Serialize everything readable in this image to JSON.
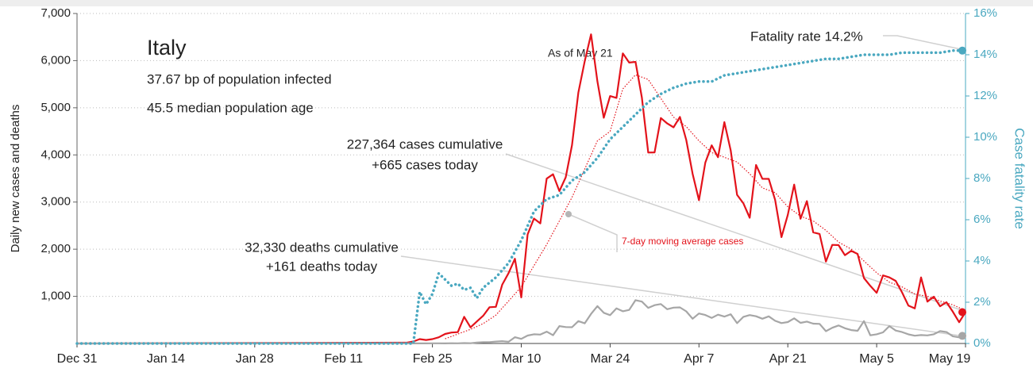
{
  "chart_data": {
    "type": "line",
    "ylabel": "Daily new cases and deaths",
    "y2label": "Case fatality rate",
    "xlim": [
      0,
      140
    ],
    "xticks": [
      {
        "value": 0,
        "label": "Dec 31"
      },
      {
        "value": 14,
        "label": "Jan 14"
      },
      {
        "value": 28,
        "label": "Jan 28"
      },
      {
        "value": 42,
        "label": "Feb 11"
      },
      {
        "value": 56,
        "label": "Feb 25"
      },
      {
        "value": 70,
        "label": "Mar 10"
      },
      {
        "value": 84,
        "label": "Mar 24"
      },
      {
        "value": 98,
        "label": "Apr 7"
      },
      {
        "value": 112,
        "label": "Apr 21"
      },
      {
        "value": 126,
        "label": "May 5"
      },
      {
        "value": 140,
        "label": "May 19"
      }
    ],
    "ylim": [
      0,
      7000
    ],
    "yticks": [
      {
        "value": 1000,
        "label": "1,000"
      },
      {
        "value": 2000,
        "label": "2,000"
      },
      {
        "value": 3000,
        "label": "3,000"
      },
      {
        "value": 4000,
        "label": "4,000"
      },
      {
        "value": 5000,
        "label": "5,000"
      },
      {
        "value": 6000,
        "label": "6,000"
      },
      {
        "value": 7000,
        "label": "7,000"
      }
    ],
    "y2lim": [
      0,
      16
    ],
    "y2ticks": [
      {
        "value": 0,
        "label": "0%"
      },
      {
        "value": 2,
        "label": "2%"
      },
      {
        "value": 4,
        "label": "4%"
      },
      {
        "value": 6,
        "label": "6%"
      },
      {
        "value": 8,
        "label": "8%"
      },
      {
        "value": 10,
        "label": "10%"
      },
      {
        "value": 12,
        "label": "12%"
      },
      {
        "value": 14,
        "label": "14%"
      },
      {
        "value": 16,
        "label": "16%"
      }
    ],
    "grid": true,
    "annotations": [
      "Italy",
      "37.67 bp of population infected",
      "45.5 median population age",
      "As of May 21",
      "227,364 cases cumulative",
      "+665 cases today",
      "32,330 deaths cumulative",
      "+161 deaths today",
      "Fatality rate 14.2%"
    ],
    "series": [
      {
        "color": "#e3131b",
        "linestyle": "solid",
        "end_marker": true,
        "x": [
          0,
          52,
          53,
          54,
          55,
          56,
          57,
          58,
          59,
          60,
          61,
          62,
          63,
          64,
          65,
          66,
          67,
          68,
          69,
          70,
          71,
          72,
          73,
          74,
          75,
          76,
          77,
          78,
          79,
          80,
          81,
          82,
          83,
          84,
          85,
          86,
          87,
          88,
          89,
          90,
          91,
          92,
          93,
          94,
          95,
          96,
          97,
          98,
          99,
          100,
          101,
          102,
          103,
          104,
          105,
          106,
          107,
          108,
          109,
          110,
          111,
          112,
          113,
          114,
          115,
          116,
          117,
          118,
          119,
          120,
          121,
          122,
          123,
          124,
          125,
          126,
          127,
          128,
          129,
          130,
          131,
          132,
          133,
          134,
          135,
          136,
          137,
          138,
          139,
          140
        ],
        "values": [
          0,
          17,
          42,
          93,
          74,
          93,
          131,
          202,
          233,
          240,
          566,
          342,
          466,
          587,
          769,
          778,
          1247,
          1492,
          1797,
          977,
          2313,
          2651,
          2547,
          3497,
          3590,
          3233,
          3526,
          4207,
          5322,
          5986,
          6557,
          5560,
          4789,
          5249,
          5210,
          6153,
          5959,
          5974,
          5217,
          4050,
          4053,
          4782,
          4668,
          4585,
          4805,
          4316,
          3599,
          3039,
          3836,
          4204,
          3951,
          4694,
          4092,
          3153,
          2972,
          2667,
          3786,
          3493,
          3491,
          3047,
          2256,
          2729,
          3370,
          2646,
          3021,
          2357,
          2324,
          1739,
          2091,
          2086,
          1872,
          1965,
          1900,
          1389,
          1221,
          1075,
          1444,
          1402,
          1327,
          1083,
          802,
          744,
          1402,
          888,
          992,
          789,
          875,
          675,
          451,
          665
        ]
      },
      {
        "color": "#a6a6a6",
        "linestyle": "solid",
        "end_marker": true,
        "x": [
          0,
          52,
          53,
          54,
          55,
          56,
          57,
          58,
          59,
          60,
          61,
          62,
          63,
          64,
          65,
          66,
          67,
          68,
          69,
          70,
          71,
          72,
          73,
          74,
          75,
          76,
          77,
          78,
          79,
          80,
          81,
          82,
          83,
          84,
          85,
          86,
          87,
          88,
          89,
          90,
          91,
          92,
          93,
          94,
          95,
          96,
          97,
          98,
          99,
          100,
          101,
          102,
          103,
          104,
          105,
          106,
          107,
          108,
          109,
          110,
          111,
          112,
          113,
          114,
          115,
          116,
          117,
          118,
          119,
          120,
          121,
          122,
          123,
          124,
          125,
          126,
          127,
          128,
          129,
          130,
          131,
          132,
          133,
          134,
          135,
          136,
          137,
          138,
          139,
          140
        ],
        "values": [
          0,
          1,
          2,
          3,
          2,
          4,
          3,
          2,
          5,
          4,
          8,
          5,
          18,
          27,
          28,
          41,
          49,
          36,
          133,
          97,
          168,
          196,
          189,
          250,
          175,
          368,
          349,
          345,
          475,
          427,
          627,
          793,
          651,
          601,
          743,
          683,
          712,
          919,
          889,
          756,
          812,
          837,
          727,
          760,
          766,
          681,
          525,
          636,
          604,
          542,
          610,
          570,
          619,
          431,
          566,
          602,
          578,
          525,
          575,
          482,
          433,
          454,
          534,
          437,
          464,
          420,
          415,
          260,
          333,
          382,
          323,
          285,
          269,
          474,
          174,
          195,
          236,
          369,
          274,
          243,
          194,
          165,
          179,
          172,
          195,
          262,
          242,
          153,
          130,
          161
        ]
      },
      {
        "name": "7-day moving average cases",
        "color": "#e3131b",
        "linestyle": "fine-dotted",
        "end_marker": false,
        "x": [
          58,
          60,
          62,
          64,
          66,
          68,
          70,
          72,
          74,
          76,
          78,
          80,
          82,
          84,
          86,
          88,
          90,
          92,
          94,
          96,
          98,
          100,
          102,
          104,
          106,
          108,
          110,
          112,
          114,
          116,
          118,
          120,
          122,
          124,
          126,
          128,
          130,
          132,
          134,
          136,
          138,
          140
        ],
        "values": [
          100,
          200,
          300,
          420,
          600,
          900,
          1200,
          1650,
          2100,
          2600,
          3100,
          3700,
          4300,
          4500,
          5400,
          5700,
          5600,
          5200,
          4800,
          4600,
          4300,
          4050,
          3950,
          3850,
          3600,
          3300,
          3200,
          2900,
          2700,
          2600,
          2400,
          2150,
          2000,
          1750,
          1500,
          1300,
          1200,
          1050,
          1000,
          900,
          820,
          700
        ]
      },
      {
        "color": "#4aa8c0",
        "linestyle": "dotted",
        "axis": "y2",
        "end_marker": true,
        "x": [
          0,
          52,
          53,
          54,
          55,
          56,
          57,
          58,
          59,
          60,
          61,
          62,
          63,
          64,
          66,
          68,
          70,
          72,
          74,
          76,
          78,
          80,
          82,
          84,
          86,
          88,
          90,
          92,
          94,
          96,
          98,
          100,
          102,
          104,
          106,
          108,
          110,
          112,
          114,
          116,
          118,
          120,
          122,
          124,
          126,
          128,
          130,
          132,
          134,
          136,
          138,
          140
        ],
        "values": [
          0,
          0,
          0,
          2.5,
          1.9,
          2.4,
          3.4,
          3.1,
          2.8,
          2.9,
          2.6,
          2.7,
          2.2,
          2.7,
          3.2,
          3.9,
          5.0,
          6.4,
          7.0,
          7.2,
          7.9,
          8.3,
          9.0,
          9.9,
          10.5,
          11.1,
          11.7,
          12.1,
          12.4,
          12.6,
          12.7,
          12.7,
          13.0,
          13.1,
          13.2,
          13.3,
          13.4,
          13.5,
          13.6,
          13.7,
          13.8,
          13.8,
          13.9,
          14.0,
          14.0,
          14.0,
          14.1,
          14.1,
          14.1,
          14.1,
          14.2,
          14.2
        ]
      }
    ]
  }
}
